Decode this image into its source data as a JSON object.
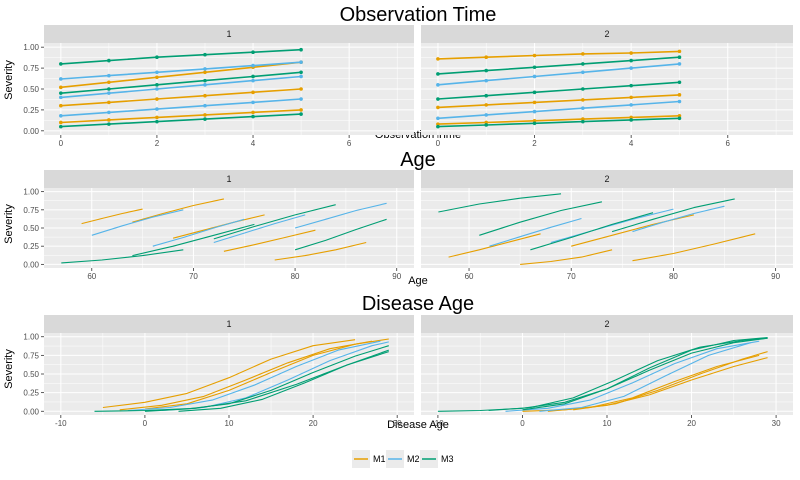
{
  "chart_data": [
    {
      "type": "line",
      "title": "Observation Time",
      "xlabel": "Observation Time",
      "ylabel": "Severity",
      "facets": [
        "1",
        "2"
      ],
      "xlim": [
        -0.35,
        7.35
      ],
      "ylim": [
        -0.05,
        1.05
      ],
      "xticks": [
        0,
        2,
        4,
        6
      ],
      "yticks": [
        0.0,
        0.25,
        0.5,
        0.75,
        1.0
      ],
      "series": [
        {
          "name": "M1",
          "facet": "1",
          "x": [
            0,
            1,
            2,
            3,
            4,
            5
          ],
          "y": [
            0.52,
            0.58,
            0.64,
            0.7,
            0.76,
            0.82
          ]
        },
        {
          "name": "M1",
          "facet": "1",
          "x": [
            0,
            1,
            2,
            3,
            4,
            5
          ],
          "y": [
            0.3,
            0.34,
            0.38,
            0.42,
            0.46,
            0.5
          ]
        },
        {
          "name": "M1",
          "facet": "1",
          "x": [
            0,
            1,
            2,
            3,
            4,
            5
          ],
          "y": [
            0.1,
            0.13,
            0.16,
            0.19,
            0.22,
            0.25
          ]
        },
        {
          "name": "M2",
          "facet": "1",
          "x": [
            0,
            1,
            2,
            3,
            4,
            5
          ],
          "y": [
            0.62,
            0.66,
            0.7,
            0.74,
            0.78,
            0.82
          ]
        },
        {
          "name": "M2",
          "facet": "1",
          "x": [
            0,
            1,
            2,
            3,
            4,
            5
          ],
          "y": [
            0.4,
            0.45,
            0.5,
            0.55,
            0.6,
            0.65
          ]
        },
        {
          "name": "M2",
          "facet": "1",
          "x": [
            0,
            1,
            2,
            3,
            4,
            5
          ],
          "y": [
            0.18,
            0.22,
            0.26,
            0.3,
            0.34,
            0.38
          ]
        },
        {
          "name": "M3",
          "facet": "1",
          "x": [
            0,
            1,
            2,
            3,
            4,
            5
          ],
          "y": [
            0.8,
            0.84,
            0.88,
            0.91,
            0.94,
            0.97
          ]
        },
        {
          "name": "M3",
          "facet": "1",
          "x": [
            0,
            1,
            2,
            3,
            4,
            5
          ],
          "y": [
            0.45,
            0.5,
            0.55,
            0.6,
            0.65,
            0.7
          ]
        },
        {
          "name": "M3",
          "facet": "1",
          "x": [
            0,
            1,
            2,
            3,
            4,
            5
          ],
          "y": [
            0.05,
            0.08,
            0.11,
            0.14,
            0.17,
            0.2
          ]
        },
        {
          "name": "M1",
          "facet": "2",
          "x": [
            0,
            1,
            2,
            3,
            4,
            5
          ],
          "y": [
            0.86,
            0.88,
            0.9,
            0.92,
            0.93,
            0.95
          ]
        },
        {
          "name": "M1",
          "facet": "2",
          "x": [
            0,
            1,
            2,
            3,
            4,
            5
          ],
          "y": [
            0.28,
            0.31,
            0.34,
            0.37,
            0.4,
            0.43
          ]
        },
        {
          "name": "M1",
          "facet": "2",
          "x": [
            0,
            1,
            2,
            3,
            4,
            5
          ],
          "y": [
            0.08,
            0.1,
            0.12,
            0.14,
            0.16,
            0.18
          ]
        },
        {
          "name": "M2",
          "facet": "2",
          "x": [
            0,
            1,
            2,
            3,
            4,
            5
          ],
          "y": [
            0.55,
            0.6,
            0.65,
            0.7,
            0.75,
            0.8
          ]
        },
        {
          "name": "M2",
          "facet": "2",
          "x": [
            0,
            1,
            2,
            3,
            4,
            5
          ],
          "y": [
            0.15,
            0.19,
            0.23,
            0.27,
            0.31,
            0.35
          ]
        },
        {
          "name": "M3",
          "facet": "2",
          "x": [
            0,
            1,
            2,
            3,
            4,
            5
          ],
          "y": [
            0.68,
            0.72,
            0.76,
            0.8,
            0.84,
            0.88
          ]
        },
        {
          "name": "M3",
          "facet": "2",
          "x": [
            0,
            1,
            2,
            3,
            4,
            5
          ],
          "y": [
            0.38,
            0.42,
            0.46,
            0.5,
            0.54,
            0.58
          ]
        },
        {
          "name": "M3",
          "facet": "2",
          "x": [
            0,
            1,
            2,
            3,
            4,
            5
          ],
          "y": [
            0.05,
            0.07,
            0.09,
            0.11,
            0.13,
            0.15
          ]
        }
      ]
    },
    {
      "type": "line",
      "title": "Age",
      "xlabel": "Age",
      "ylabel": "Severity",
      "facets": [
        "1",
        "2"
      ],
      "xlim": [
        55.3,
        91.7
      ],
      "ylim": [
        -0.05,
        1.05
      ],
      "xticks": [
        60,
        70,
        80,
        90
      ],
      "yticks": [
        0.0,
        0.25,
        0.5,
        0.75,
        1.0
      ],
      "series": [
        {
          "name": "M1",
          "facet": "1",
          "x": [
            59,
            61,
            63,
            65
          ],
          "y": [
            0.56,
            0.63,
            0.7,
            0.76
          ]
        },
        {
          "name": "M1",
          "facet": "1",
          "x": [
            64,
            67,
            70,
            73
          ],
          "y": [
            0.58,
            0.7,
            0.81,
            0.9
          ]
        },
        {
          "name": "M1",
          "facet": "1",
          "x": [
            68,
            71,
            74,
            77
          ],
          "y": [
            0.36,
            0.47,
            0.58,
            0.68
          ]
        },
        {
          "name": "M1",
          "facet": "1",
          "x": [
            73,
            76,
            79,
            82
          ],
          "y": [
            0.18,
            0.27,
            0.37,
            0.47
          ]
        },
        {
          "name": "M1",
          "facet": "1",
          "x": [
            78,
            81,
            84,
            87
          ],
          "y": [
            0.06,
            0.12,
            0.2,
            0.3
          ]
        },
        {
          "name": "M2",
          "facet": "1",
          "x": [
            60,
            63,
            66,
            69
          ],
          "y": [
            0.4,
            0.53,
            0.65,
            0.75
          ]
        },
        {
          "name": "M2",
          "facet": "1",
          "x": [
            66,
            69,
            72,
            75
          ],
          "y": [
            0.25,
            0.37,
            0.5,
            0.62
          ]
        },
        {
          "name": "M2",
          "facet": "1",
          "x": [
            72,
            75,
            78,
            81
          ],
          "y": [
            0.3,
            0.43,
            0.56,
            0.68
          ]
        },
        {
          "name": "M2",
          "facet": "1",
          "x": [
            80,
            83,
            86,
            89
          ],
          "y": [
            0.5,
            0.62,
            0.74,
            0.84
          ]
        },
        {
          "name": "M3",
          "facet": "1",
          "x": [
            57,
            61,
            65,
            69
          ],
          "y": [
            0.02,
            0.06,
            0.12,
            0.2
          ]
        },
        {
          "name": "M3",
          "facet": "1",
          "x": [
            64,
            68,
            72,
            76
          ],
          "y": [
            0.12,
            0.25,
            0.4,
            0.55
          ]
        },
        {
          "name": "M3",
          "facet": "1",
          "x": [
            72,
            76,
            80,
            84
          ],
          "y": [
            0.35,
            0.52,
            0.68,
            0.82
          ]
        },
        {
          "name": "M3",
          "facet": "1",
          "x": [
            80,
            83,
            86,
            89
          ],
          "y": [
            0.2,
            0.33,
            0.48,
            0.62
          ]
        },
        {
          "name": "M1",
          "facet": "2",
          "x": [
            58,
            61,
            64,
            67
          ],
          "y": [
            0.1,
            0.2,
            0.31,
            0.42
          ]
        },
        {
          "name": "M1",
          "facet": "2",
          "x": [
            65,
            68,
            71,
            74
          ],
          "y": [
            0.0,
            0.04,
            0.1,
            0.2
          ]
        },
        {
          "name": "M1",
          "facet": "2",
          "x": [
            70,
            74,
            78,
            82
          ],
          "y": [
            0.25,
            0.4,
            0.55,
            0.68
          ]
        },
        {
          "name": "M1",
          "facet": "2",
          "x": [
            76,
            80,
            84,
            88
          ],
          "y": [
            0.05,
            0.15,
            0.28,
            0.42
          ]
        },
        {
          "name": "M2",
          "facet": "2",
          "x": [
            62,
            65,
            68,
            71
          ],
          "y": [
            0.25,
            0.38,
            0.51,
            0.63
          ]
        },
        {
          "name": "M2",
          "facet": "2",
          "x": [
            68,
            72,
            76,
            80
          ],
          "y": [
            0.3,
            0.46,
            0.62,
            0.76
          ]
        },
        {
          "name": "M2",
          "facet": "2",
          "x": [
            76,
            79,
            82,
            85
          ],
          "y": [
            0.45,
            0.58,
            0.7,
            0.8
          ]
        },
        {
          "name": "M3",
          "facet": "2",
          "x": [
            57,
            61,
            65,
            69
          ],
          "y": [
            0.72,
            0.83,
            0.91,
            0.97
          ]
        },
        {
          "name": "M3",
          "facet": "2",
          "x": [
            61,
            65,
            69,
            73
          ],
          "y": [
            0.4,
            0.58,
            0.74,
            0.86
          ]
        },
        {
          "name": "M3",
          "facet": "2",
          "x": [
            66,
            70,
            74,
            78
          ],
          "y": [
            0.2,
            0.37,
            0.55,
            0.71
          ]
        },
        {
          "name": "M3",
          "facet": "2",
          "x": [
            74,
            78,
            82,
            86
          ],
          "y": [
            0.45,
            0.62,
            0.78,
            0.9
          ]
        }
      ]
    },
    {
      "type": "line",
      "title": "Disease Age",
      "xlabel": "Disease Age",
      "ylabel": "Severity",
      "facets": [
        "1",
        "2"
      ],
      "xlim": [
        -12,
        32
      ],
      "ylim": [
        -0.05,
        1.05
      ],
      "xticks": [
        -10,
        0,
        10,
        20,
        30
      ],
      "yticks": [
        0.0,
        0.25,
        0.5,
        0.75,
        1.0
      ],
      "series": [
        {
          "name": "M1",
          "facet": "1",
          "x": [
            -5,
            0,
            5,
            10,
            15,
            20,
            25
          ],
          "y": [
            0.05,
            0.12,
            0.24,
            0.45,
            0.7,
            0.88,
            0.96
          ]
        },
        {
          "name": "M1",
          "facet": "1",
          "x": [
            -3,
            2,
            7,
            12,
            17,
            22,
            27
          ],
          "y": [
            0.02,
            0.08,
            0.2,
            0.42,
            0.65,
            0.84,
            0.94
          ]
        },
        {
          "name": "M1",
          "facet": "1",
          "x": [
            0,
            5,
            10,
            15,
            20,
            25,
            29
          ],
          "y": [
            0.03,
            0.1,
            0.28,
            0.52,
            0.75,
            0.9,
            0.97
          ]
        },
        {
          "name": "M2",
          "facet": "1",
          "x": [
            -2,
            3,
            8,
            13,
            18,
            23,
            28
          ],
          "y": [
            0.01,
            0.05,
            0.15,
            0.35,
            0.6,
            0.82,
            0.94
          ]
        },
        {
          "name": "M2",
          "facet": "1",
          "x": [
            2,
            7,
            12,
            17,
            22,
            27,
            29
          ],
          "y": [
            0.01,
            0.05,
            0.18,
            0.42,
            0.68,
            0.88,
            0.93
          ]
        },
        {
          "name": "M3",
          "facet": "1",
          "x": [
            -6,
            0,
            6,
            12,
            18,
            24,
            29
          ],
          "y": [
            0.0,
            0.01,
            0.04,
            0.14,
            0.36,
            0.62,
            0.82
          ]
        },
        {
          "name": "M3",
          "facet": "1",
          "x": [
            0,
            5,
            10,
            15,
            20,
            25,
            29
          ],
          "y": [
            0.0,
            0.03,
            0.1,
            0.28,
            0.52,
            0.74,
            0.88
          ]
        },
        {
          "name": "M3",
          "facet": "1",
          "x": [
            4,
            9,
            14,
            19,
            24,
            29
          ],
          "y": [
            0.0,
            0.04,
            0.16,
            0.38,
            0.62,
            0.8
          ]
        },
        {
          "name": "M1",
          "facet": "2",
          "x": [
            0,
            5,
            10,
            15,
            20,
            25,
            29
          ],
          "y": [
            0.0,
            0.02,
            0.08,
            0.22,
            0.42,
            0.6,
            0.72
          ]
        },
        {
          "name": "M1",
          "facet": "2",
          "x": [
            3,
            8,
            13,
            18,
            23,
            28
          ],
          "y": [
            0.0,
            0.05,
            0.18,
            0.4,
            0.6,
            0.75
          ]
        },
        {
          "name": "M1",
          "facet": "2",
          "x": [
            6,
            11,
            16,
            21,
            26,
            29
          ],
          "y": [
            0.02,
            0.1,
            0.28,
            0.5,
            0.7,
            0.8
          ]
        },
        {
          "name": "M2",
          "facet": "2",
          "x": [
            -2,
            3,
            8,
            13,
            18,
            23,
            28
          ],
          "y": [
            0.0,
            0.04,
            0.15,
            0.38,
            0.64,
            0.84,
            0.94
          ]
        },
        {
          "name": "M2",
          "facet": "2",
          "x": [
            2,
            7,
            12,
            17,
            22,
            27
          ],
          "y": [
            0.0,
            0.05,
            0.2,
            0.48,
            0.75,
            0.92
          ]
        },
        {
          "name": "M3",
          "facet": "2",
          "x": [
            -10,
            -5,
            0,
            5,
            10,
            15,
            20,
            25,
            29
          ],
          "y": [
            0.0,
            0.01,
            0.04,
            0.12,
            0.3,
            0.55,
            0.78,
            0.92,
            0.98
          ]
        },
        {
          "name": "M3",
          "facet": "2",
          "x": [
            -4,
            1,
            6,
            11,
            16,
            21,
            26,
            29
          ],
          "y": [
            0.01,
            0.05,
            0.18,
            0.42,
            0.68,
            0.86,
            0.95,
            0.98
          ]
        },
        {
          "name": "M3",
          "facet": "2",
          "x": [
            0,
            5,
            10,
            15,
            20,
            25,
            29
          ],
          "y": [
            0.02,
            0.1,
            0.3,
            0.58,
            0.82,
            0.95,
            0.99
          ]
        }
      ]
    }
  ],
  "legend": {
    "position": "bottom",
    "items": [
      {
        "label": "M1",
        "color": "#E69F00"
      },
      {
        "label": "M2",
        "color": "#56B4E9"
      },
      {
        "label": "M3",
        "color": "#009E73"
      }
    ]
  },
  "colors": {
    "panel_background": "#EBEBEB",
    "strip_background": "#D9D9D9",
    "grid": "#FFFFFF"
  }
}
